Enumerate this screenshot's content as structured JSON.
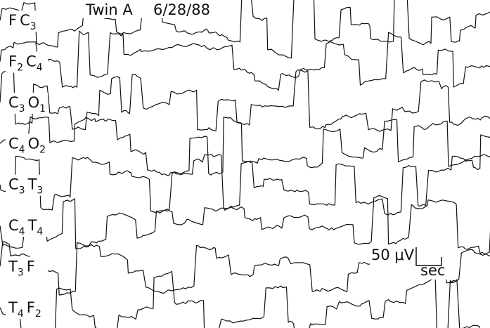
{
  "header": {
    "subject": "Twin A",
    "date": "6/28/88"
  },
  "channels": [
    [
      {
        "letter": "F"
      },
      {
        "letter": "C",
        "sub": "3"
      }
    ],
    [
      {
        "letter": "F",
        "sub": "2"
      },
      {
        "letter": "C",
        "sub": "4"
      }
    ],
    [
      {
        "letter": "C",
        "sub": "3"
      },
      {
        "letter": "O",
        "sub": "1"
      }
    ],
    [
      {
        "letter": "C",
        "sub": "4"
      },
      {
        "letter": "O",
        "sub": "2"
      }
    ],
    [
      {
        "letter": "C",
        "sub": "3"
      },
      {
        "letter": "T",
        "sub": "3"
      }
    ],
    [
      {
        "letter": "C",
        "sub": "4"
      },
      {
        "letter": "T",
        "sub": "4"
      }
    ],
    [
      {
        "letter": "T",
        "sub": "3"
      },
      {
        "letter": "F"
      }
    ],
    [
      {
        "letter": "T",
        "sub": "4"
      },
      {
        "letter": "F",
        "sub": "2"
      }
    ]
  ],
  "scale": {
    "amplitude": "50 μV",
    "time": "sec"
  }
}
